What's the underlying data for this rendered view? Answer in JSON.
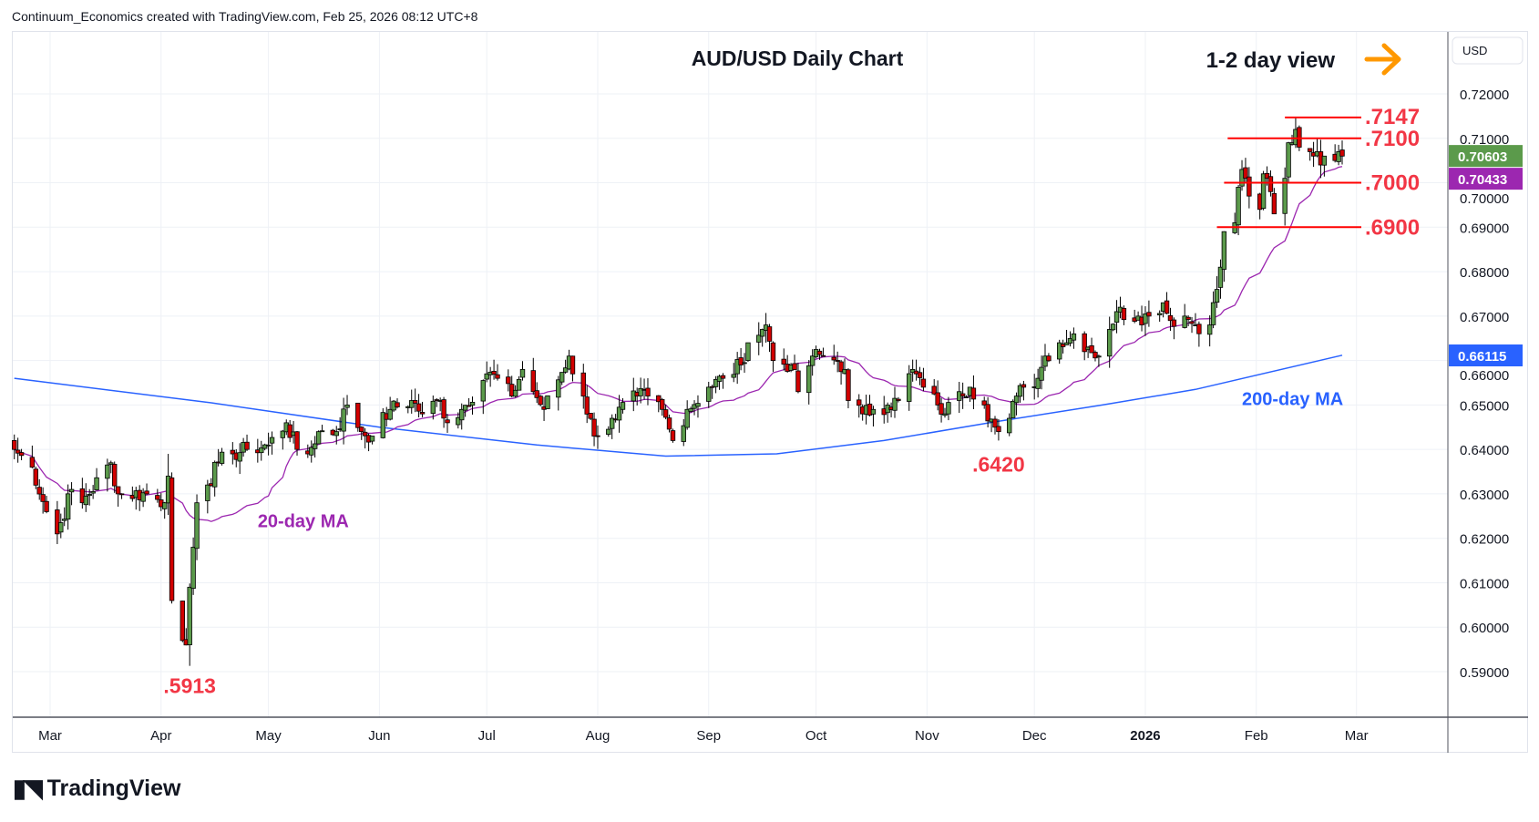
{
  "header": {
    "text": "Continuum_Economics created with TradingView.com, Feb 25, 2026 08:12 UTC+8"
  },
  "footer": {
    "brand": "TradingView"
  },
  "chart_data": {
    "type": "candlestick",
    "title": "AUD/USD Daily Chart",
    "view_label": "1-2 day view",
    "view_direction": "right",
    "currency": "USD",
    "ylim": [
      0.582,
      0.7268
    ],
    "y_ticks": [
      "0.72000",
      "0.71000",
      "0.70000",
      "0.69000",
      "0.68000",
      "0.67000",
      "0.66000",
      "0.65000",
      "0.64000",
      "0.63000",
      "0.62000",
      "0.61000",
      "0.60000",
      "0.59000"
    ],
    "y_tick_values": [
      0.72,
      0.71,
      0.7,
      0.69,
      0.68,
      0.67,
      0.66,
      0.65,
      0.64,
      0.63,
      0.62,
      0.61,
      0.6,
      0.59
    ],
    "x_ticks": [
      {
        "label": "Mar",
        "date": "2025-03-01"
      },
      {
        "label": "Apr",
        "date": "2025-04-01"
      },
      {
        "label": "May",
        "date": "2025-05-01"
      },
      {
        "label": "Jun",
        "date": "2025-06-01"
      },
      {
        "label": "Jul",
        "date": "2025-07-01"
      },
      {
        "label": "Aug",
        "date": "2025-08-01"
      },
      {
        "label": "Sep",
        "date": "2025-09-01"
      },
      {
        "label": "Oct",
        "date": "2025-10-01"
      },
      {
        "label": "Nov",
        "date": "2025-11-01"
      },
      {
        "label": "Dec",
        "date": "2025-12-01"
      },
      {
        "label": "2026",
        "date": "2026-01-01"
      },
      {
        "label": "Feb",
        "date": "2026-02-01"
      },
      {
        "label": "Mar",
        "date": "2026-03-01"
      }
    ],
    "close_anchors": [
      [
        "2025-02-19",
        0.64
      ],
      [
        "2025-02-24",
        0.636
      ],
      [
        "2025-02-28",
        0.626
      ],
      [
        "2025-03-03",
        0.621
      ],
      [
        "2025-03-07",
        0.631
      ],
      [
        "2025-03-10",
        0.628
      ],
      [
        "2025-03-18",
        0.637
      ],
      [
        "2025-03-20",
        0.63
      ],
      [
        "2025-03-28",
        0.63
      ],
      [
        "2025-04-02",
        0.628
      ],
      [
        "2025-04-03",
        0.634
      ],
      [
        "2025-04-04",
        0.606
      ],
      [
        "2025-04-07",
        0.597
      ],
      [
        "2025-04-08",
        0.596
      ],
      [
        "2025-04-09",
        0.609
      ],
      [
        "2025-04-10",
        0.618
      ],
      [
        "2025-04-11",
        0.628
      ],
      [
        "2025-04-14",
        0.632
      ],
      [
        "2025-04-17",
        0.637
      ],
      [
        "2025-04-21",
        0.639
      ],
      [
        "2025-04-25",
        0.64
      ],
      [
        "2025-05-01",
        0.641
      ],
      [
        "2025-05-06",
        0.646
      ],
      [
        "2025-05-09",
        0.64
      ],
      [
        "2025-05-12",
        0.639
      ],
      [
        "2025-05-15",
        0.644
      ],
      [
        "2025-05-20",
        0.644
      ],
      [
        "2025-05-23",
        0.65
      ],
      [
        "2025-05-27",
        0.644
      ],
      [
        "2025-05-30",
        0.643
      ],
      [
        "2025-06-04",
        0.649
      ],
      [
        "2025-06-10",
        0.651
      ],
      [
        "2025-06-13",
        0.648
      ],
      [
        "2025-06-18",
        0.651
      ],
      [
        "2025-06-20",
        0.646
      ],
      [
        "2025-06-24",
        0.649
      ],
      [
        "2025-07-01",
        0.657
      ],
      [
        "2025-07-04",
        0.656
      ],
      [
        "2025-07-08",
        0.652
      ],
      [
        "2025-07-11",
        0.658
      ],
      [
        "2025-07-14",
        0.653
      ],
      [
        "2025-07-17",
        0.649
      ],
      [
        "2025-07-24",
        0.661
      ],
      [
        "2025-07-25",
        0.657
      ],
      [
        "2025-07-28",
        0.652
      ],
      [
        "2025-07-31",
        0.643
      ],
      [
        "2025-08-01",
        0.643
      ],
      [
        "2025-08-05",
        0.647
      ],
      [
        "2025-08-12",
        0.652
      ],
      [
        "2025-08-15",
        0.652
      ],
      [
        "2025-08-19",
        0.649
      ],
      [
        "2025-08-22",
        0.642
      ],
      [
        "2025-08-26",
        0.649
      ],
      [
        "2025-09-01",
        0.654
      ],
      [
        "2025-09-05",
        0.656
      ],
      [
        "2025-09-10",
        0.659
      ],
      [
        "2025-09-12",
        0.664
      ],
      [
        "2025-09-16",
        0.667
      ],
      [
        "2025-09-17",
        0.668
      ],
      [
        "2025-09-19",
        0.66
      ],
      [
        "2025-09-24",
        0.659
      ],
      [
        "2025-09-26",
        0.653
      ],
      [
        "2025-09-30",
        0.661
      ],
      [
        "2025-10-03",
        0.661
      ],
      [
        "2025-10-07",
        0.66
      ],
      [
        "2025-10-09",
        0.658
      ],
      [
        "2025-10-10",
        0.651
      ],
      [
        "2025-10-14",
        0.648
      ],
      [
        "2025-10-17",
        0.649
      ],
      [
        "2025-10-21",
        0.65
      ],
      [
        "2025-10-24",
        0.651
      ],
      [
        "2025-10-28",
        0.658
      ],
      [
        "2025-10-29",
        0.657
      ],
      [
        "2025-10-31",
        0.654
      ],
      [
        "2025-11-04",
        0.65
      ],
      [
        "2025-11-06",
        0.648
      ],
      [
        "2025-11-10",
        0.653
      ],
      [
        "2025-11-13",
        0.654
      ],
      [
        "2025-11-17",
        0.65
      ],
      [
        "2025-11-20",
        0.645
      ],
      [
        "2025-11-21",
        0.644
      ],
      [
        "2025-11-24",
        0.647
      ],
      [
        "2025-11-26",
        0.652
      ],
      [
        "2025-11-28",
        0.654
      ],
      [
        "2025-12-02",
        0.656
      ],
      [
        "2025-12-04",
        0.661
      ],
      [
        "2025-12-08",
        0.664
      ],
      [
        "2025-12-10",
        0.664
      ],
      [
        "2025-12-12",
        0.666
      ],
      [
        "2025-12-16",
        0.663
      ],
      [
        "2025-12-19",
        0.661
      ],
      [
        "2025-12-22",
        0.667
      ],
      [
        "2025-12-24",
        0.671
      ],
      [
        "2025-12-30",
        0.67
      ],
      [
        "2026-01-02",
        0.67
      ],
      [
        "2026-01-06",
        0.673
      ],
      [
        "2026-01-08",
        0.669
      ],
      [
        "2026-01-12",
        0.67
      ],
      [
        "2026-01-15",
        0.668
      ],
      [
        "2026-01-19",
        0.668
      ],
      [
        "2026-01-21",
        0.676
      ],
      [
        "2026-01-22",
        0.681
      ],
      [
        "2026-01-23",
        0.689
      ],
      [
        "2026-01-26",
        0.691
      ],
      [
        "2026-01-27",
        0.699
      ],
      [
        "2026-01-28",
        0.703
      ],
      [
        "2026-01-29",
        0.701
      ],
      [
        "2026-01-30",
        0.697
      ],
      [
        "2026-02-02",
        0.694
      ],
      [
        "2026-02-03",
        0.702
      ],
      [
        "2026-02-04",
        0.701
      ],
      [
        "2026-02-05",
        0.698
      ],
      [
        "2026-02-06",
        0.693
      ],
      [
        "2026-02-09",
        0.701
      ],
      [
        "2026-02-10",
        0.709
      ],
      [
        "2026-02-11",
        0.709
      ],
      [
        "2026-02-12",
        0.712
      ],
      [
        "2026-02-13",
        0.708
      ],
      [
        "2026-02-16",
        0.707
      ],
      [
        "2026-02-17",
        0.706
      ],
      [
        "2026-02-18",
        0.707
      ],
      [
        "2026-02-19",
        0.704
      ],
      [
        "2026-02-20",
        0.706
      ],
      [
        "2026-02-23",
        0.705
      ],
      [
        "2026-02-24",
        0.707
      ],
      [
        "2026-02-25",
        0.706
      ]
    ],
    "ma200_anchors": [
      [
        "2025-02-19",
        0.656
      ],
      [
        "2025-04-15",
        0.6505
      ],
      [
        "2025-06-01",
        0.645
      ],
      [
        "2025-07-15",
        0.641
      ],
      [
        "2025-08-20",
        0.6385
      ],
      [
        "2025-09-20",
        0.639
      ],
      [
        "2025-10-20",
        0.642
      ],
      [
        "2025-11-20",
        0.6462
      ],
      [
        "2025-12-20",
        0.65
      ],
      [
        "2026-01-15",
        0.6535
      ],
      [
        "2026-02-25",
        0.6612
      ]
    ],
    "levels": [
      {
        "label": ".7147",
        "value": 0.7147,
        "from": "2026-02-09"
      },
      {
        "label": ".7100",
        "value": 0.71,
        "from": "2026-01-24"
      },
      {
        "label": ".7000",
        "value": 0.7,
        "from": "2026-01-23"
      },
      {
        "label": ".6900",
        "value": 0.69,
        "from": "2026-01-21"
      }
    ],
    "annotations": [
      {
        "text": ".6420",
        "date": "2025-11-21",
        "value": 0.642
      },
      {
        "text": ".5913",
        "date": "2025-04-09",
        "value": 0.5913
      },
      {
        "text": "20-day MA",
        "date": "2025-04-28",
        "value": 0.6225,
        "color": "#9c27b0"
      },
      {
        "text": "200-day MA",
        "date": "2026-01-28",
        "value": 0.65,
        "color": "#2962ff"
      }
    ],
    "badges": [
      {
        "text": "0.70603",
        "value": 0.70603,
        "color": "#5b9a4b"
      },
      {
        "text": "0.70433",
        "value": 0.70433,
        "color": "#9c27b0"
      },
      {
        "text": "0.66115",
        "value": 0.66115,
        "color": "#2962ff"
      }
    ],
    "lows": {
      "2025-04-09": 0.5913,
      "2025-11-21": 0.642,
      "2025-03-03": 0.6187
    },
    "highs": {
      "2026-02-12": 0.7147,
      "2025-09-17": 0.6707,
      "2025-04-03": 0.639
    },
    "colors": {
      "up": "#5b9a4b",
      "down": "#d10000",
      "levels": "#ff0000",
      "label": "#f23645",
      "ma20": "#9c27b0",
      "ma200": "#2962ff",
      "arrow": "#ff9800"
    }
  }
}
